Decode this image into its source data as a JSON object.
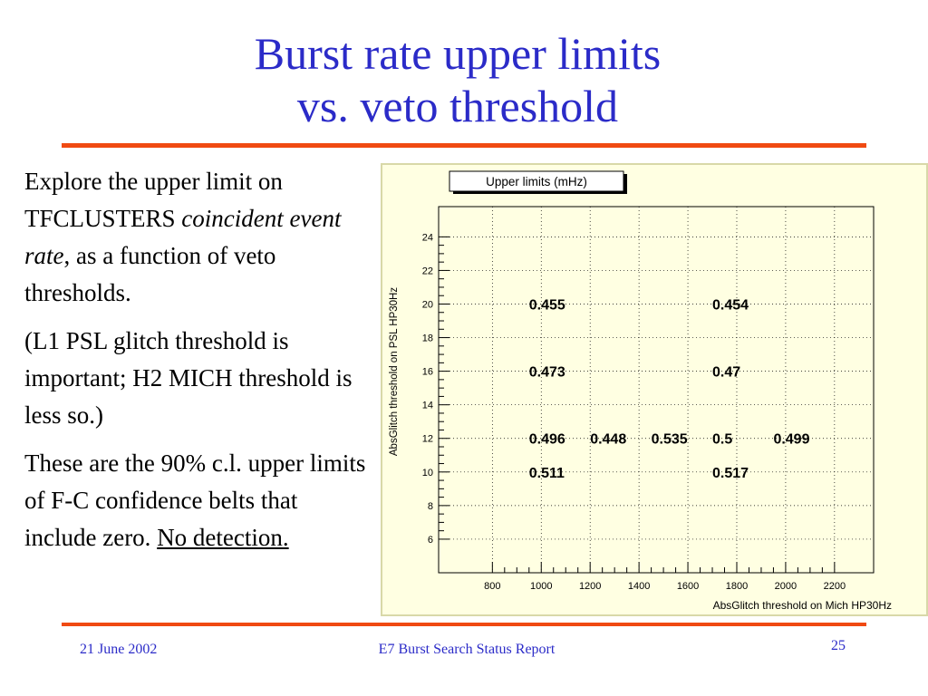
{
  "title": {
    "line1": "Burst rate upper limits",
    "line2": "vs. veto threshold"
  },
  "body": {
    "p1_a": "Explore the upper limit on TFCLUSTERS ",
    "p1_em": "coincident event rate",
    "p1_b": ", as a function of veto thresholds.",
    "p2": "(L1 PSL glitch threshold is important; H2 MICH threshold is less so.)",
    "p3_a": "These are the 90% c.l. upper limits of F-C confidence belts that include zero. ",
    "p3_link": "No detection."
  },
  "footer": {
    "date": "21 June 2002",
    "report": "E7 Burst Search Status Report",
    "page": "25"
  },
  "colors": {
    "title": "#2b2bc8",
    "rule": "#f04a12",
    "chart_bg": "#ffffe2"
  },
  "chart_data": {
    "type": "scatter",
    "title": "Upper limits (mHz)",
    "xlabel": "AbsGlitch threshold on Mich HP30Hz",
    "ylabel": "AbsGlitch threshold on PSL HP30Hz",
    "xlim": [
      580,
      2360
    ],
    "ylim": [
      4,
      25.8
    ],
    "x_ticks": [
      800,
      1000,
      1200,
      1400,
      1600,
      1800,
      2000,
      2200
    ],
    "y_ticks": [
      6,
      8,
      10,
      12,
      14,
      16,
      18,
      20,
      22,
      24
    ],
    "grid": true,
    "points": [
      {
        "x": 950,
        "y": 20,
        "label": "0.455"
      },
      {
        "x": 1700,
        "y": 20,
        "label": "0.454"
      },
      {
        "x": 950,
        "y": 16,
        "label": "0.473"
      },
      {
        "x": 1700,
        "y": 16,
        "label": "0.47"
      },
      {
        "x": 950,
        "y": 12,
        "label": "0.496"
      },
      {
        "x": 1200,
        "y": 12,
        "label": "0.448"
      },
      {
        "x": 1450,
        "y": 12,
        "label": "0.535"
      },
      {
        "x": 1700,
        "y": 12,
        "label": "0.5"
      },
      {
        "x": 1950,
        "y": 12,
        "label": "0.499"
      },
      {
        "x": 950,
        "y": 10,
        "label": "0.511"
      },
      {
        "x": 1700,
        "y": 10,
        "label": "0.517"
      }
    ]
  }
}
